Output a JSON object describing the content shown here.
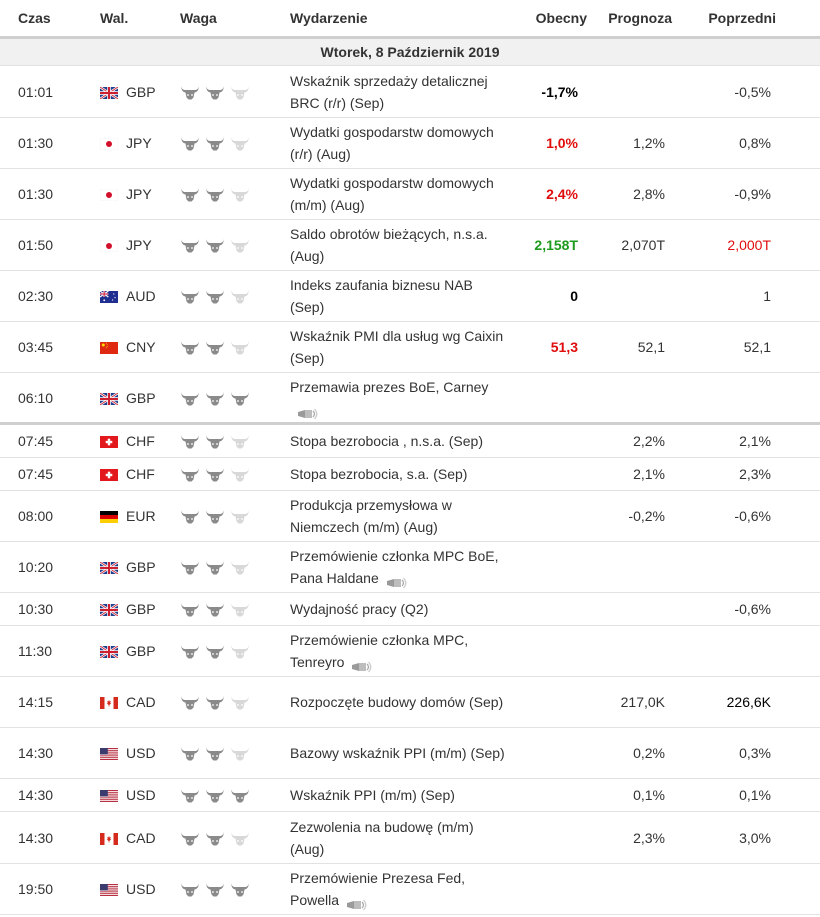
{
  "headers": {
    "time": "Czas",
    "currency": "Wal.",
    "importance": "Waga",
    "event": "Wydarzenie",
    "actual": "Obecny",
    "forecast": "Prognoza",
    "previous": "Poprzedni"
  },
  "day_label": "Wtorek, 8 Październik 2019",
  "colors": {
    "red": "#e00d0d",
    "green": "#1e9b1e",
    "bull_on": "#888888",
    "bull_off": "#d6d6d6"
  },
  "rows": [
    {
      "time": "01:01",
      "flag": "uk",
      "cur": "GBP",
      "imp": 2,
      "event": "Wskaźnik sprzedaży detalicznej BRC (r/r) (Sep)",
      "speech": false,
      "actual": "-1,7%",
      "actual_color": "black",
      "forecast": "",
      "previous": "-0,5%",
      "previous_color": "normal"
    },
    {
      "time": "01:30",
      "flag": "jp",
      "cur": "JPY",
      "imp": 2,
      "event": "Wydatki gospodarstw domowych (r/r) (Aug)",
      "speech": false,
      "actual": "1,0%",
      "actual_color": "red",
      "forecast": "1,2%",
      "previous": "0,8%",
      "previous_color": "normal"
    },
    {
      "time": "01:30",
      "flag": "jp",
      "cur": "JPY",
      "imp": 2,
      "event": "Wydatki gospodarstw domowych (m/m) (Aug)",
      "speech": false,
      "actual": "2,4%",
      "actual_color": "red",
      "forecast": "2,8%",
      "previous": "-0,9%",
      "previous_color": "normal"
    },
    {
      "time": "01:50",
      "flag": "jp",
      "cur": "JPY",
      "imp": 2,
      "event": "Saldo obrotów bieżących, n.s.a. (Aug)",
      "speech": false,
      "actual": "2,158T",
      "actual_color": "green",
      "forecast": "2,070T",
      "previous": "2,000T",
      "previous_color": "red"
    },
    {
      "time": "02:30",
      "flag": "au",
      "cur": "AUD",
      "imp": 2,
      "event": "Indeks zaufania biznesu NAB (Sep)",
      "speech": false,
      "actual": "0",
      "actual_color": "black",
      "forecast": "",
      "previous": "1",
      "previous_color": "normal"
    },
    {
      "time": "03:45",
      "flag": "cn",
      "cur": "CNY",
      "imp": 2,
      "event": "Wskaźnik PMI dla usług wg Caixin (Sep)",
      "speech": false,
      "actual": "51,3",
      "actual_color": "red",
      "forecast": "52,1",
      "previous": "52,1",
      "previous_color": "normal"
    },
    {
      "time": "06:10",
      "flag": "uk",
      "cur": "GBP",
      "imp": 3,
      "event": "Przemawia prezes BoE, Carney",
      "speech": true,
      "actual": "",
      "actual_color": "black",
      "forecast": "",
      "previous": "",
      "previous_color": "normal"
    },
    {
      "time": "07:45",
      "flag": "ch",
      "cur": "CHF",
      "imp": 2,
      "event": "Stopa bezrobocia , n.s.a. (Sep)",
      "speech": false,
      "actual": "",
      "actual_color": "black",
      "forecast": "2,2%",
      "previous": "2,1%",
      "previous_color": "normal"
    },
    {
      "time": "07:45",
      "flag": "ch",
      "cur": "CHF",
      "imp": 2,
      "event": "Stopa bezrobocia, s.a. (Sep)",
      "speech": false,
      "actual": "",
      "actual_color": "black",
      "forecast": "2,1%",
      "previous": "2,3%",
      "previous_color": "normal"
    },
    {
      "time": "08:00",
      "flag": "de",
      "cur": "EUR",
      "imp": 2,
      "event": "Produkcja przemysłowa w Niemczech (m/m) (Aug)",
      "speech": false,
      "actual": "",
      "actual_color": "black",
      "forecast": "-0,2%",
      "previous": "-0,6%",
      "previous_color": "normal"
    },
    {
      "time": "10:20",
      "flag": "uk",
      "cur": "GBP",
      "imp": 2,
      "event": "Przemówienie członka MPC BoE, Pana Haldane",
      "speech": true,
      "actual": "",
      "actual_color": "black",
      "forecast": "",
      "previous": "",
      "previous_color": "normal"
    },
    {
      "time": "10:30",
      "flag": "uk",
      "cur": "GBP",
      "imp": 2,
      "event": "Wydajność pracy (Q2)",
      "speech": false,
      "actual": "",
      "actual_color": "black",
      "forecast": "",
      "previous": "-0,6%",
      "previous_color": "normal"
    },
    {
      "time": "11:30",
      "flag": "uk",
      "cur": "GBP",
      "imp": 2,
      "event": "Przemówienie członka MPC, Tenreyro",
      "speech": true,
      "actual": "",
      "actual_color": "black",
      "forecast": "",
      "previous": "",
      "previous_color": "normal"
    },
    {
      "time": "14:15",
      "flag": "ca",
      "cur": "CAD",
      "imp": 2,
      "event": "Rozpoczęte budowy domów (Sep)",
      "speech": false,
      "actual": "",
      "actual_color": "black",
      "forecast": "217,0K",
      "previous": "226,6K",
      "previous_color": "black"
    },
    {
      "time": "14:30",
      "flag": "us",
      "cur": "USD",
      "imp": 2,
      "event": "Bazowy wskaźnik PPI (m/m) (Sep)",
      "speech": false,
      "actual": "",
      "actual_color": "black",
      "forecast": "0,2%",
      "previous": "0,3%",
      "previous_color": "normal"
    },
    {
      "time": "14:30",
      "flag": "us",
      "cur": "USD",
      "imp": 3,
      "event": "Wskaźnik PPI (m/m) (Sep)",
      "speech": false,
      "actual": "",
      "actual_color": "black",
      "forecast": "0,1%",
      "previous": "0,1%",
      "previous_color": "normal"
    },
    {
      "time": "14:30",
      "flag": "ca",
      "cur": "CAD",
      "imp": 2,
      "event": "Zezwolenia na budowę (m/m) (Aug)",
      "speech": false,
      "actual": "",
      "actual_color": "black",
      "forecast": "2,3%",
      "previous": "3,0%",
      "previous_color": "normal"
    },
    {
      "time": "19:50",
      "flag": "us",
      "cur": "USD",
      "imp": 3,
      "event": "Przemówienie Prezesa Fed, Powella",
      "speech": true,
      "actual": "",
      "actual_color": "black",
      "forecast": "",
      "previous": "",
      "previous_color": "normal"
    }
  ]
}
